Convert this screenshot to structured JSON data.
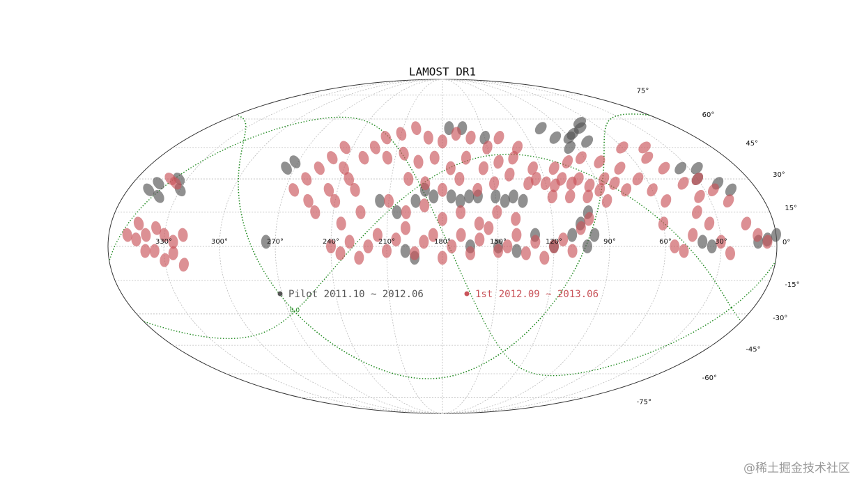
{
  "chart_data": {
    "type": "mollweide",
    "title": "LAMOST DR1",
    "xlim": [
      0,
      360
    ],
    "ylim": [
      -90,
      90
    ],
    "xticks": [
      {
        "value": 330,
        "label": "330°"
      },
      {
        "value": 300,
        "label": "300°"
      },
      {
        "value": 270,
        "label": "270°"
      },
      {
        "value": 240,
        "label": "240°"
      },
      {
        "value": 210,
        "label": "210°"
      },
      {
        "value": 180,
        "label": "180°"
      },
      {
        "value": 150,
        "label": "150°"
      },
      {
        "value": 120,
        "label": "120°"
      },
      {
        "value": 90,
        "label": "90°"
      },
      {
        "value": 60,
        "label": "60°"
      },
      {
        "value": 30,
        "label": "30°"
      }
    ],
    "yticks": [
      {
        "value": -75,
        "label": "-75°"
      },
      {
        "value": -60,
        "label": "-60°"
      },
      {
        "value": -45,
        "label": "-45°"
      },
      {
        "value": -30,
        "label": "-30°"
      },
      {
        "value": -15,
        "label": "-15°"
      },
      {
        "value": 0,
        "label": "0°"
      },
      {
        "value": 15,
        "label": "15°"
      },
      {
        "value": 30,
        "label": "30°"
      },
      {
        "value": 45,
        "label": "45°"
      },
      {
        "value": 60,
        "label": "60°"
      },
      {
        "value": 75,
        "label": "75°"
      }
    ],
    "grid": true,
    "contours": [
      {
        "value": 0,
        "label": "0.0",
        "color": "#228b22"
      }
    ],
    "series": [
      {
        "name": "Pilot 2011.10 ~ 2012.06",
        "color": "#555555",
        "x": [
          348,
          345,
          340,
          335,
          330,
          275,
          272,
          275,
          215,
          205,
          195,
          190,
          185,
          175,
          170,
          165,
          160,
          150,
          145,
          140,
          135,
          200,
          195,
          165,
          150,
          140,
          130,
          120,
          110,
          105,
          100,
          98,
          102,
          105,
          100,
          95,
          90,
          85,
          80,
          75,
          70,
          175,
          165,
          150,
          35,
          30,
          25,
          20,
          15,
          10,
          5,
          0,
          40,
          35
        ],
        "values": [
          25,
          28,
          22,
          30,
          25,
          35,
          38,
          2,
          20,
          15,
          20,
          25,
          22,
          22,
          20,
          22,
          22,
          22,
          20,
          22,
          20,
          -2,
          -5,
          0,
          0,
          -2,
          5,
          0,
          5,
          10,
          15,
          5,
          0,
          55,
          50,
          45,
          50,
          52,
          48,
          55,
          58,
          55,
          55,
          50,
          35,
          30,
          35,
          28,
          25,
          2,
          3,
          5,
          2,
          0
        ]
      },
      {
        "name": "1st 2012.09 ~ 2013.06",
        "color": "#c9545a",
        "x": [
          345,
          340,
          335,
          330,
          325,
          320,
          335,
          325,
          330,
          320,
          340,
          350,
          345,
          335,
          340,
          265,
          260,
          255,
          250,
          245,
          255,
          245,
          240,
          250,
          235,
          230,
          225,
          240,
          230,
          225,
          235,
          240,
          235,
          230,
          225,
          220,
          215,
          210,
          205,
          200,
          195,
          190,
          185,
          180,
          175,
          170,
          165,
          160,
          155,
          150,
          145,
          140,
          135,
          130,
          125,
          120,
          115,
          110,
          105,
          100,
          220,
          210,
          200,
          190,
          180,
          170,
          160,
          150,
          140,
          130,
          215,
          205,
          195,
          185,
          175,
          165,
          155,
          145,
          135,
          125,
          200,
          190,
          180,
          170,
          160,
          150,
          140,
          210,
          200,
          190,
          180,
          170,
          160,
          150,
          140,
          130,
          125,
          120,
          115,
          110,
          105,
          100,
          95,
          90,
          85,
          80,
          75,
          118,
          108,
          98,
          88,
          112,
          102,
          92,
          82,
          72,
          65,
          60,
          55,
          50,
          45,
          40,
          35,
          60,
          55,
          50,
          45,
          40,
          35,
          30,
          25,
          30,
          25,
          20,
          15,
          10,
          5,
          45,
          60
        ],
        "values": [
          3,
          5,
          8,
          5,
          2,
          5,
          -2,
          -3,
          -6,
          -8,
          -2,
          5,
          10,
          28,
          30,
          25,
          30,
          35,
          40,
          45,
          20,
          25,
          20,
          15,
          30,
          40,
          45,
          35,
          25,
          15,
          10,
          0,
          -3,
          2,
          -5,
          0,
          5,
          -2,
          3,
          8,
          -3,
          2,
          5,
          -5,
          0,
          5,
          -3,
          3,
          8,
          -2,
          0,
          5,
          -3,
          2,
          -5,
          0,
          3,
          -2,
          8,
          12,
          50,
          52,
          55,
          50,
          48,
          52,
          50,
          45,
          50,
          45,
          40,
          42,
          38,
          40,
          35,
          40,
          35,
          38,
          40,
          35,
          30,
          28,
          25,
          30,
          25,
          28,
          32,
          20,
          15,
          18,
          12,
          15,
          10,
          15,
          12,
          28,
          30,
          28,
          27,
          30,
          28,
          30,
          27,
          25,
          30,
          28,
          25,
          22,
          22,
          22,
          20,
          35,
          38,
          40,
          38,
          35,
          30,
          25,
          20,
          40,
          35,
          28,
          22,
          10,
          0,
          -2,
          5,
          15,
          10,
          2,
          -3,
          30,
          25,
          20,
          10,
          5,
          2,
          45,
          45
        ]
      }
    ],
    "legend": "center",
    "watermark": "@稀土掘金技术社区"
  }
}
